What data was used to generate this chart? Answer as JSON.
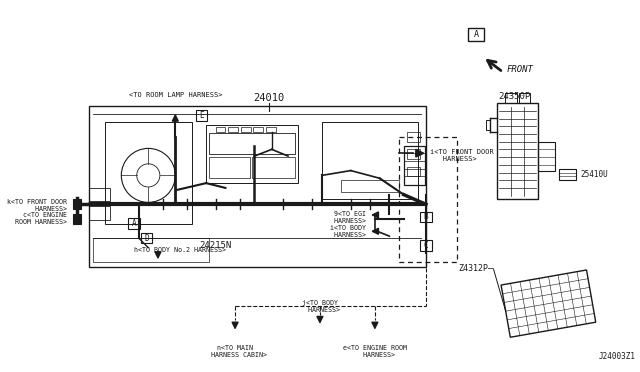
{
  "bg_color": "#ffffff",
  "lc": "#1a1a1a",
  "fig_w": 6.4,
  "fig_h": 3.72,
  "dpi": 100,
  "part_24010": "24010",
  "part_24215N": "24215N",
  "part_24350P": "24350P",
  "part_25410U": "25410U",
  "part_Z4312P": "Z4312P",
  "footer": "J24003Z1",
  "lbl_room_lamp": "<TO ROOM LAMP HARNESS>",
  "lbl_front_door_i": "i<TO FRONT DOOR\n   HARNESS>",
  "lbl_front_door_k": "k<TO FRONT DOOR\n   HARNESS>",
  "lbl_eng_room_c": "c<TO ENGINE\n  ROOM HARNESS>",
  "lbl_egi_9": "9<TO EGI\n  HARNESS>",
  "lbl_body_i": "i<TO BODY\n  HARNESS>",
  "lbl_body_no2_h": "h<TO BODY No.2 HARNESS>",
  "lbl_body_j": "j<TO BODY\n  HARNESS>",
  "lbl_main_cabin_n": "n<TO MAIN\n  HARNESS CABIN>",
  "lbl_eng_room_e": "e<TO ENGINE ROOM\n  HARNESS>",
  "lbl_E": "E",
  "lbl_A": "A",
  "lbl_B": "B",
  "lbl_C": "C",
  "lbl_D": "D",
  "lbl_A_corner": "A",
  "lbl_FRONT": "FRONT"
}
